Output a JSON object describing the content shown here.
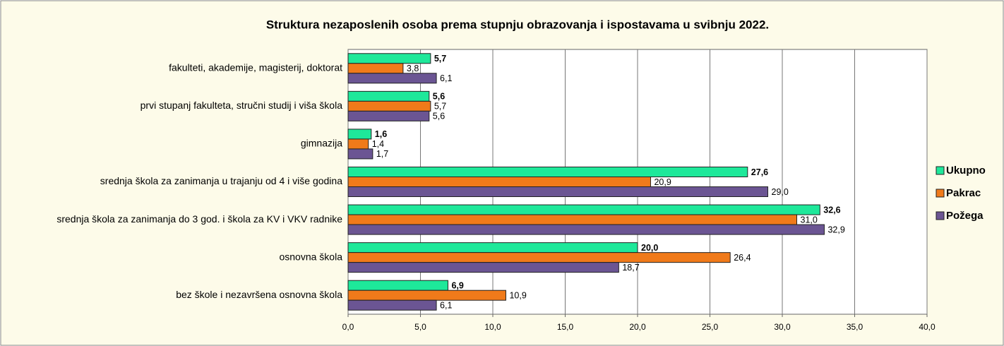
{
  "chart_data": {
    "type": "bar",
    "orientation": "horizontal",
    "title": "Struktura nezaposlenih osoba prema stupnju obrazovanja i ispostavama u  svibnju 2022.",
    "categories": [
      "fakulteti, akademije, magisterij, doktorat",
      "prvi stupanj fakulteta, stručni studij i viša škola",
      "gimnazija",
      "srednja škola za zanimanja u trajanju od 4 i više godina",
      "srednja škola za zanimanja do 3 god. i škola za KV i VKV radnike",
      "osnovna škola",
      "bez škole i nezavršena osnovna škola"
    ],
    "series": [
      {
        "name": "Ukupno",
        "color": "#1ee89a",
        "values": [
          5.7,
          5.6,
          1.6,
          27.6,
          32.6,
          20.0,
          6.9
        ],
        "value_labels": [
          "5,7",
          "5,6",
          "1,6",
          "27,6",
          "32,6",
          "20,0",
          "6,9"
        ]
      },
      {
        "name": "Pakrac",
        "color": "#f07a1a",
        "values": [
          3.8,
          5.7,
          1.4,
          20.9,
          31.0,
          26.4,
          10.9
        ],
        "value_labels": [
          "3,8",
          "5,7",
          "1,4",
          "20,9",
          "31,0",
          "26,4",
          "10,9"
        ]
      },
      {
        "name": "Požega",
        "color": "#6b5593",
        "values": [
          6.1,
          5.6,
          1.7,
          29.0,
          32.9,
          18.7,
          6.1
        ],
        "value_labels": [
          "6,1",
          "5,6",
          "1,7",
          "29,0",
          "32,9",
          "18,7",
          "6,1"
        ]
      }
    ],
    "xlim": [
      0,
      40
    ],
    "xticks": [
      {
        "value": 0,
        "label": "0,0"
      },
      {
        "value": 5,
        "label": "5,0"
      },
      {
        "value": 10,
        "label": "10,0"
      },
      {
        "value": 15,
        "label": "15,0"
      },
      {
        "value": 20,
        "label": "20,0"
      },
      {
        "value": 25,
        "label": "25,0"
      },
      {
        "value": 30,
        "label": "30,0"
      },
      {
        "value": 35,
        "label": "35,0"
      },
      {
        "value": 40,
        "label": "40,0"
      }
    ],
    "grid": true,
    "legend": "right"
  }
}
